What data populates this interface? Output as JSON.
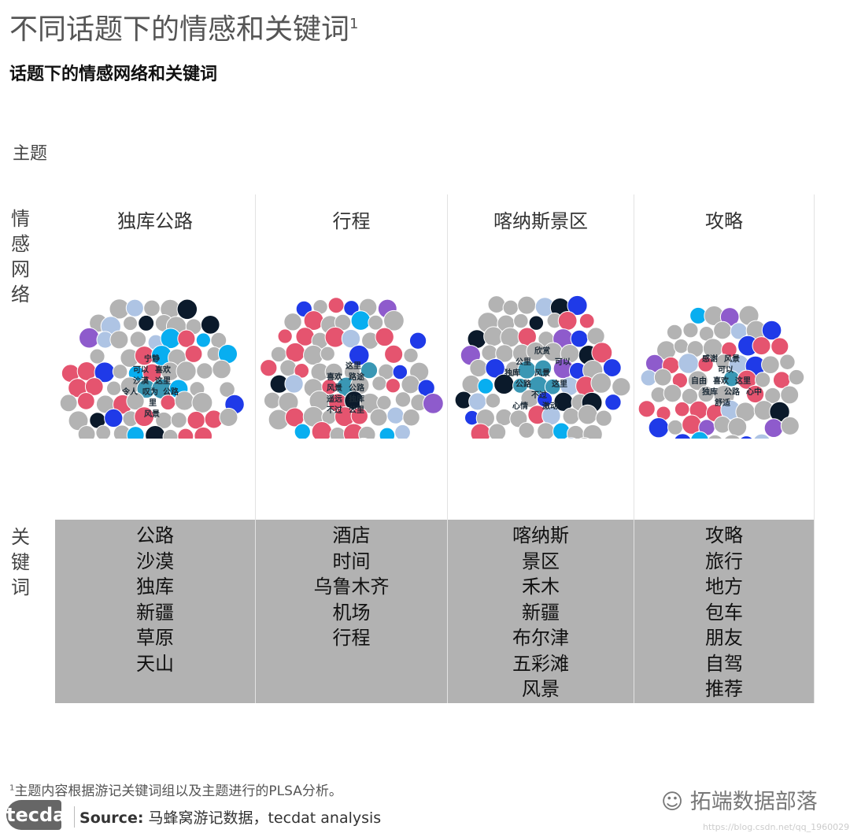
{
  "title": "不同话题下的情感和关键词",
  "title_footnote_mark": "1",
  "subtitle": "话题下的情感网络和关键词",
  "row_header": "主题",
  "side_labels": {
    "network": "情感网络",
    "keywords": "关键词"
  },
  "colors": {
    "gray": "#b3b3b3",
    "red": "#e5546f",
    "navy": "#0b1a2b",
    "cyan": "#08aef0",
    "blue": "#1f3ae8",
    "lightblue": "#aec4e4",
    "purple": "#8e5bcc",
    "teal": "#3a97b4"
  },
  "topics": [
    {
      "name": "独库公路",
      "network_labels": [
        "宁静",
        "可以",
        "喜欢",
        "沙漠",
        "这里",
        "令人",
        "叹为",
        "公路",
        "里",
        "风景"
      ],
      "keywords": [
        "公路",
        "沙漠",
        "独库",
        "新疆",
        "草原",
        "天山"
      ]
    },
    {
      "name": "行程",
      "network_labels": [
        "这里",
        "喜欢",
        "路途",
        "风景",
        "公路",
        "遥远",
        "独库",
        "不过",
        "公里"
      ],
      "keywords": [
        "酒店",
        "时间",
        "乌鲁木齐",
        "机场",
        "行程"
      ]
    },
    {
      "name": "喀纳斯景区",
      "network_labels": [
        "欣赏",
        "公里",
        "可以",
        "独库",
        "风景",
        "公路",
        "这里",
        "不过",
        "心情",
        "激动"
      ],
      "keywords": [
        "喀纳斯",
        "景区",
        "禾木",
        "新疆",
        "布尔津",
        "五彩滩",
        "风景"
      ]
    },
    {
      "name": "攻略",
      "network_labels": [
        "感谢",
        "风景",
        "可以",
        "自由",
        "喜欢",
        "这里",
        "独库",
        "公路",
        "心中",
        "舒适"
      ],
      "keywords": [
        "攻略",
        "旅行",
        "地方",
        "包车",
        "朋友",
        "自驾",
        "推荐"
      ]
    }
  ],
  "footnote_mark": "1",
  "footnote": "主题内容根据游记关键词组以及主题进行的PLSA分析。",
  "logo": "tecdat",
  "source_label": "Source:",
  "source": " 马蜂窝游记数据，tecdat analysis",
  "watermark": "拓端数据部落",
  "watermark_url": "https://blog.csdn.net/qq_19600291"
}
